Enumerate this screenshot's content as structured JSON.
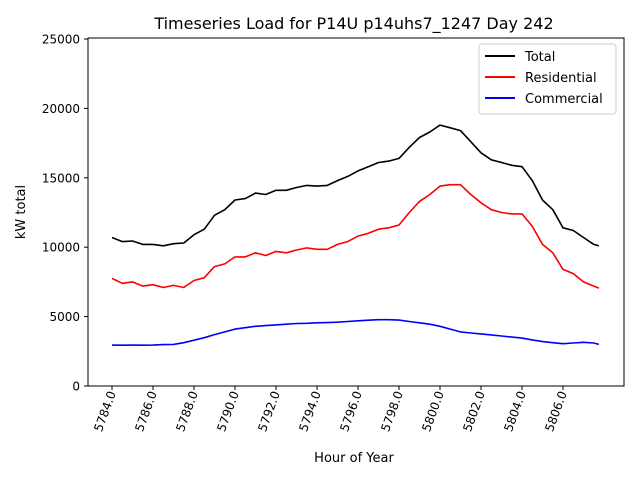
{
  "chart_data": {
    "type": "line",
    "title": "Timeseries Load for P14U p14uhs7_1247  Day 242",
    "xlabel": "Hour of Year",
    "ylabel": "kW total",
    "xlim": [
      5782.8,
      5810.0
    ],
    "ylim": [
      0,
      25000
    ],
    "xticks": [
      5784,
      5786,
      5788,
      5790,
      5792,
      5794,
      5796,
      5798,
      5800,
      5802,
      5804,
      5806
    ],
    "xtick_labels": [
      "5784.0",
      "5786.0",
      "5788.0",
      "5790.0",
      "5792.0",
      "5794.0",
      "5796.0",
      "5798.0",
      "5800.0",
      "5802.0",
      "5804.0",
      "5806.0"
    ],
    "yticks": [
      0,
      5000,
      10000,
      15000,
      20000,
      25000
    ],
    "ytick_labels": [
      "0",
      "5000",
      "10000",
      "15000",
      "20000",
      "25000"
    ],
    "legend_position": "top-right",
    "x": [
      5784,
      5784.5,
      5785,
      5785.5,
      5786,
      5786.5,
      5787,
      5787.5,
      5788,
      5788.5,
      5789,
      5789.5,
      5790,
      5790.5,
      5791,
      5791.5,
      5792,
      5792.5,
      5793,
      5793.5,
      5794,
      5794.5,
      5795,
      5795.5,
      5796,
      5796.5,
      5797,
      5797.5,
      5798,
      5798.5,
      5799,
      5799.5,
      5800,
      5800.5,
      5801,
      5801.5,
      5802,
      5802.5,
      5803,
      5803.5,
      5804,
      5804.5,
      5805,
      5805.5,
      5806,
      5806.5,
      5807,
      5807.5,
      5807.75
    ],
    "series": [
      {
        "name": "Total",
        "color": "#000000",
        "values": [
          10700,
          10400,
          10450,
          10200,
          10200,
          10100,
          10250,
          10300,
          10900,
          11300,
          12300,
          12700,
          13400,
          13500,
          13900,
          13800,
          14100,
          14100,
          14300,
          14450,
          14400,
          14450,
          14800,
          15100,
          15500,
          15800,
          16100,
          16200,
          16400,
          17200,
          17900,
          18300,
          18800,
          18600,
          18400,
          17600,
          16800,
          16300,
          16100,
          15900,
          15800,
          14800,
          13400,
          12700,
          11400,
          11200,
          10700,
          10200,
          10100
        ]
      },
      {
        "name": "Residential",
        "color": "#ff0000",
        "values": [
          7750,
          7400,
          7500,
          7200,
          7300,
          7100,
          7250,
          7100,
          7600,
          7800,
          8600,
          8800,
          9300,
          9300,
          9600,
          9400,
          9700,
          9600,
          9800,
          9950,
          9850,
          9850,
          10200,
          10400,
          10800,
          11000,
          11300,
          11400,
          11600,
          12500,
          13300,
          13800,
          14400,
          14500,
          14500,
          13800,
          13200,
          12700,
          12500,
          12400,
          12400,
          11500,
          10200,
          9600,
          8400,
          8100,
          7500,
          7200,
          7050
        ]
      },
      {
        "name": "Commercial",
        "color": "#0000ff",
        "values": [
          2950,
          2940,
          2950,
          2940,
          2950,
          2980,
          3000,
          3120,
          3300,
          3480,
          3700,
          3900,
          4100,
          4200,
          4300,
          4350,
          4400,
          4450,
          4500,
          4520,
          4550,
          4570,
          4600,
          4650,
          4700,
          4740,
          4780,
          4780,
          4750,
          4650,
          4550,
          4450,
          4300,
          4100,
          3900,
          3820,
          3750,
          3680,
          3600,
          3520,
          3450,
          3320,
          3200,
          3120,
          3050,
          3100,
          3150,
          3100,
          3000
        ]
      }
    ]
  }
}
